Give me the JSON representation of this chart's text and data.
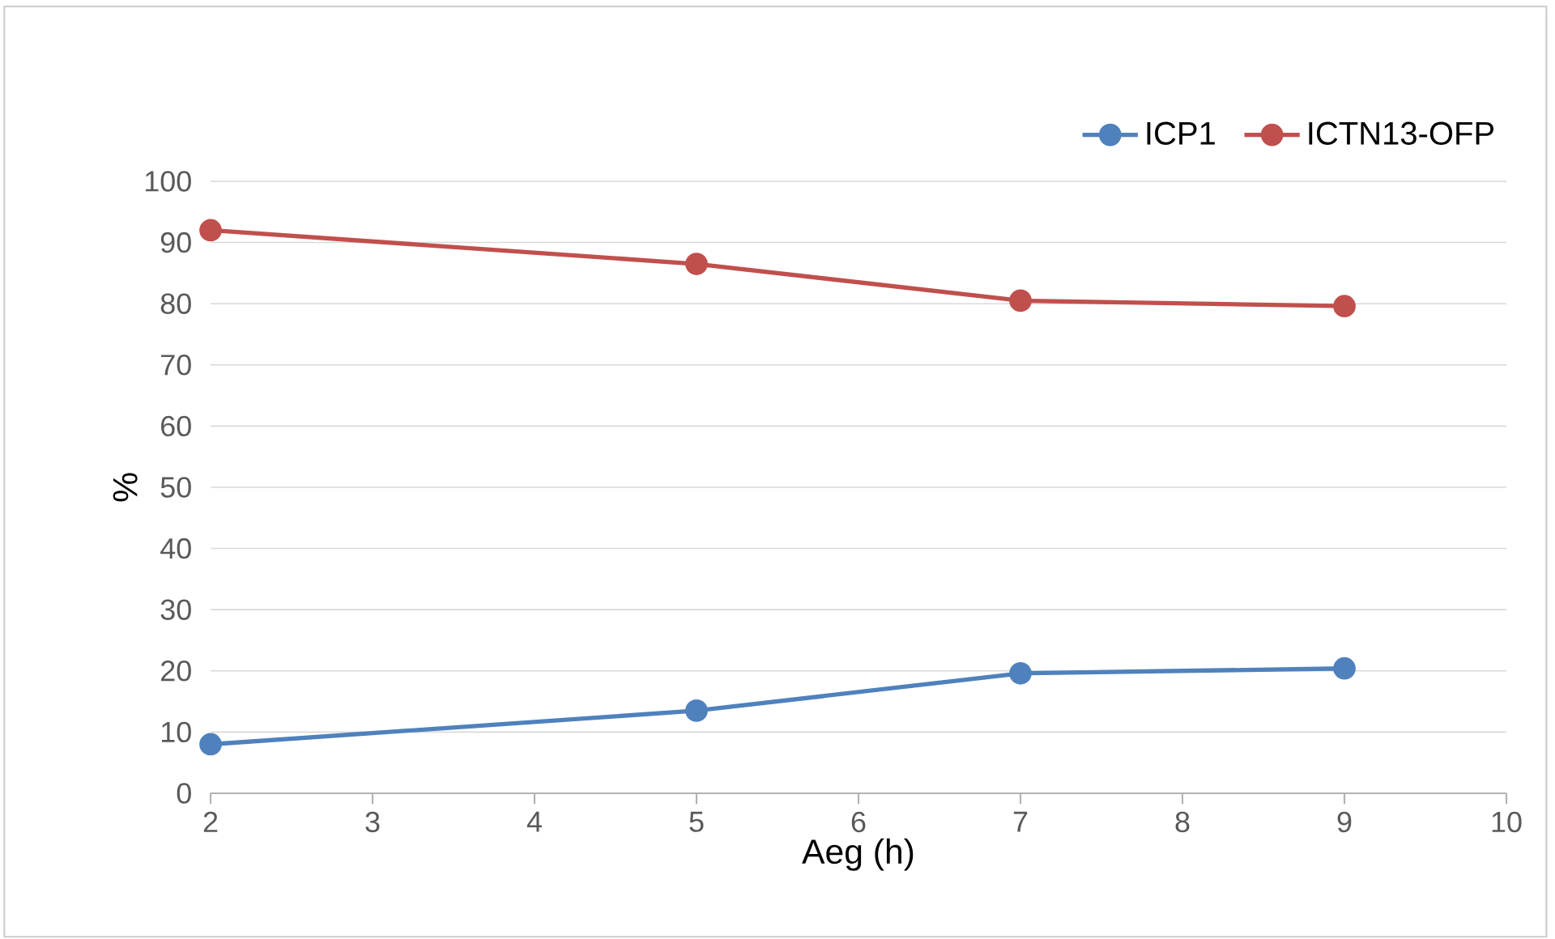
{
  "chart_data": {
    "type": "line",
    "xlabel": "Aeg (h)",
    "ylabel": "%",
    "x": [
      2,
      5,
      7,
      9
    ],
    "series": [
      {
        "name": "ICP1",
        "color": "#4f81bd",
        "values": [
          8,
          13.5,
          19.6,
          20.4
        ]
      },
      {
        "name": "ICTN13-OFP",
        "color": "#c0504d",
        "values": [
          92,
          86.5,
          80.5,
          79.6
        ]
      }
    ],
    "xlim": [
      2,
      10
    ],
    "xticks": [
      2,
      3,
      4,
      5,
      6,
      7,
      8,
      9,
      10
    ],
    "ylim": [
      0,
      100
    ],
    "yticks": [
      0,
      10,
      20,
      30,
      40,
      50,
      60,
      70,
      80,
      90,
      100
    ],
    "grid": "y",
    "legend": "top right",
    "marker": "circle",
    "line_style": "solid"
  }
}
